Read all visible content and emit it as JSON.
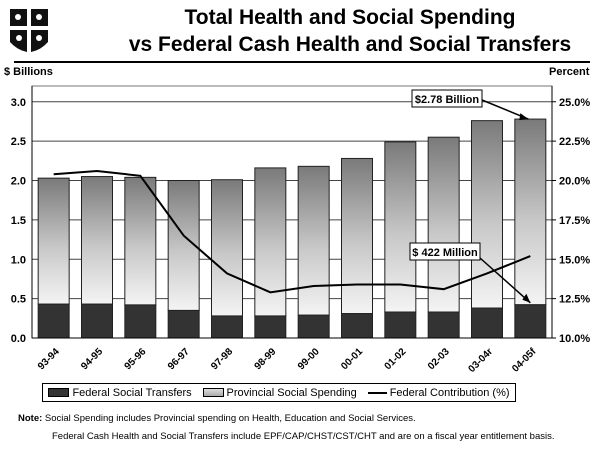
{
  "logo": {
    "name": "coat-of-arms-shield"
  },
  "title_lines": [
    "Total Health and Social Spending",
    "vs Federal Cash Health and Social Transfers"
  ],
  "chart_data": {
    "type": "bar",
    "stacked": true,
    "title": "Total Health and Social Spending vs Federal Cash Health and Social Transfers",
    "ylabel": "$ Billions",
    "y2label": "Percent",
    "ylim": [
      0,
      3.2
    ],
    "y2lim": [
      10,
      26
    ],
    "yticks": [
      "0.0",
      "0.5",
      "1.0",
      "1.5",
      "2.0",
      "2.5",
      "3.0"
    ],
    "y2ticks": [
      "10.0%",
      "12.5%",
      "15.0%",
      "17.5%",
      "20.0%",
      "22.5%",
      "25.0%"
    ],
    "grid": true,
    "legend_position": "bottom",
    "categories": [
      "93-94",
      "94-95",
      "95-96",
      "96-97",
      "97-98",
      "98-99",
      "99-00",
      "00-01",
      "01-02",
      "02-03",
      "03-04r",
      "04-05f"
    ],
    "series": [
      {
        "name": "Federal Social Transfers",
        "kind": "bar",
        "axis": "left",
        "color": "#2e2e2e",
        "values": [
          0.43,
          0.43,
          0.42,
          0.35,
          0.28,
          0.28,
          0.29,
          0.31,
          0.33,
          0.33,
          0.38,
          0.422
        ]
      },
      {
        "name": "Provincial Social Spending",
        "kind": "bar",
        "axis": "left",
        "color": "#a0a0a0",
        "values": [
          1.6,
          1.62,
          1.62,
          1.65,
          1.73,
          1.88,
          1.89,
          1.97,
          2.16,
          2.22,
          2.38,
          2.358
        ]
      },
      {
        "name": "Federal Contribution (%)",
        "kind": "line",
        "axis": "right",
        "color": "#000000",
        "values": [
          20.4,
          20.6,
          20.3,
          16.5,
          14.1,
          12.9,
          13.3,
          13.4,
          13.4,
          13.1,
          14.1,
          15.2
        ]
      }
    ],
    "annotations": [
      {
        "text": "$2.78 Billion",
        "target_category": "04-05f",
        "target": "total"
      },
      {
        "text": "$ 422 Million",
        "target_category": "04-05f",
        "target": "federal"
      }
    ]
  },
  "notes": {
    "label": "Note:",
    "line1": "Social Spending includes Provincial spending on Health, Education and Social Services.",
    "line2": "Federal Cash Health and Social Transfers include EPF/CAP/CHST/CST/CHT and are on a fiscal year entitlement basis."
  }
}
